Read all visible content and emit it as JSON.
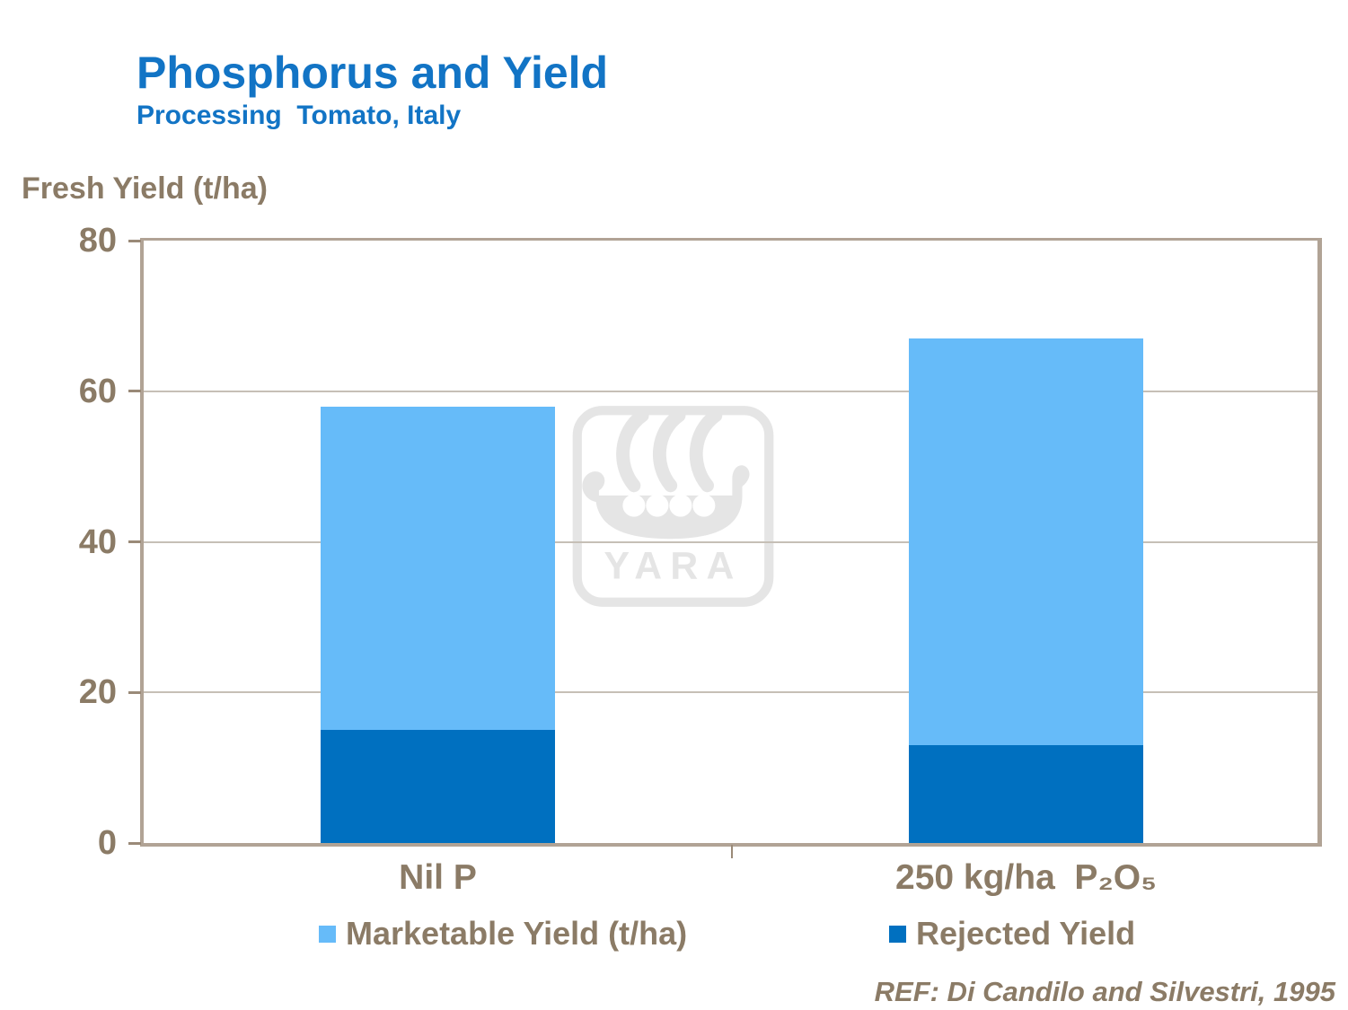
{
  "chart_data": {
    "type": "bar",
    "stacked": true,
    "title": "Phosphorus and Yield",
    "subtitle": "Processing  Tomato, Italy",
    "y_axis_title": "Fresh Yield (t/ha)",
    "categories": [
      "Nil P",
      "250 kg/ha  P₂O₅"
    ],
    "series": [
      {
        "name": "Rejected Yield",
        "color": "#0070C0",
        "values": [
          15,
          13
        ]
      },
      {
        "name": "Marketable Yield (t/ha)",
        "color": "#66BBF9",
        "values": [
          43,
          54
        ]
      }
    ],
    "totals": [
      58,
      67
    ],
    "ylim": [
      0,
      80
    ],
    "yticks": [
      0,
      20,
      40,
      60,
      80
    ],
    "grid": true,
    "legend_position": "bottom"
  },
  "legend": {
    "items": [
      {
        "label": "Marketable Yield (t/ha)",
        "color": "#66BBF9"
      },
      {
        "label": "Rejected Yield",
        "color": "#0070C0"
      }
    ]
  },
  "watermark": {
    "icon": "yara-viking-ship-logo",
    "text": "YARA",
    "color": "#E5E5E5"
  },
  "footer": {
    "reference": "REF: Di Candilo and Silvestri, 1995"
  },
  "colors": {
    "title_blue": "#1274C5",
    "axis_text_brown": "#8B7B66",
    "frame_tan": "#B1A395",
    "gridline": "#C6BFB6",
    "marketable_blue": "#66BBF9",
    "rejected_blue": "#0070C0",
    "watermark_gray": "#E5E5E5"
  }
}
